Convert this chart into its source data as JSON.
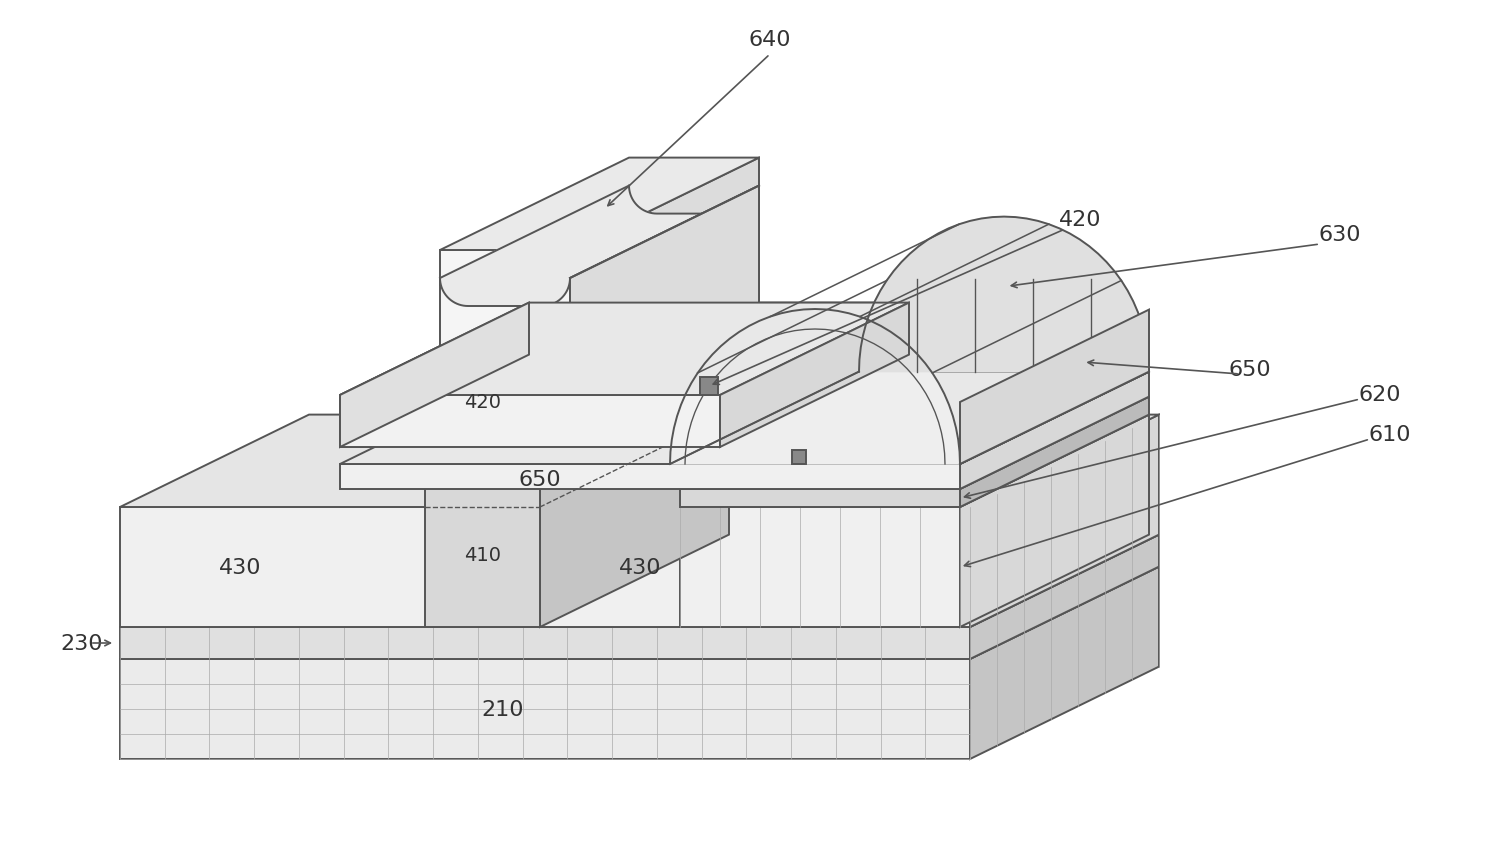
{
  "bg_color": "#ffffff",
  "line_color": "#555555",
  "line_width": 1.4,
  "colors": {
    "white_face": "#f5f5f5",
    "light_face": "#ebebeb",
    "mid_face": "#d8d8d8",
    "dark_face": "#c5c5c5",
    "darker_face": "#b5b5b5",
    "hatch_bg": "#e0e0e0",
    "gate_front": "#d0d0d0",
    "gate_top": "#c0c0c0",
    "gate_right": "#b0b0b0",
    "fin_front": "#d8d8d8",
    "fin_right": "#c5c5c5",
    "fin_top": "#d0d0d0",
    "box420_front": "#b8b8b8",
    "box420_top": "#aaaaaa",
    "box420_right": "#999999"
  },
  "label_fontsize": 16
}
